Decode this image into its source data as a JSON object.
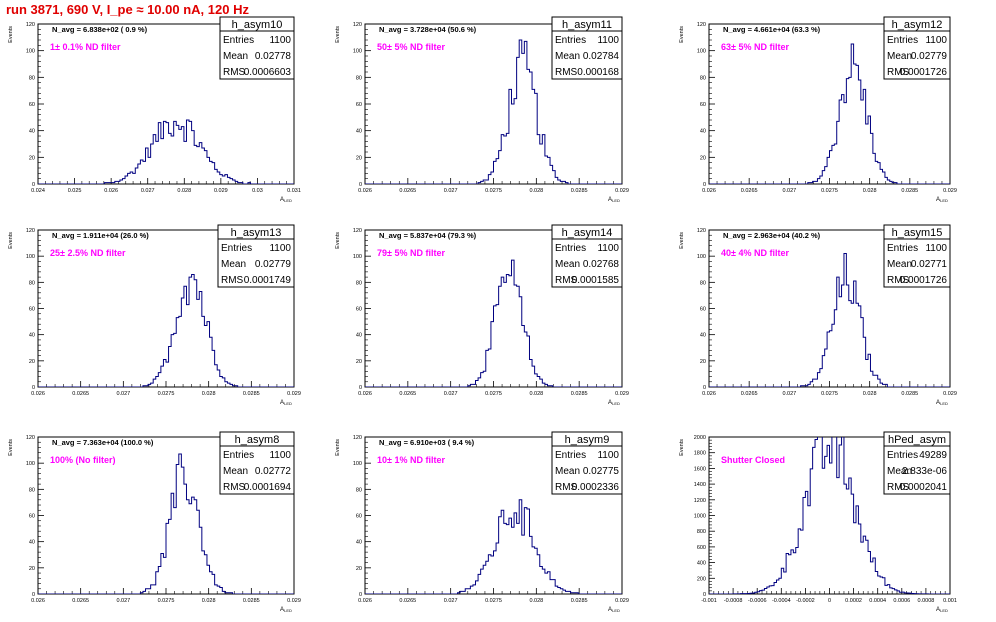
{
  "page": {
    "title": "run 3871,   690 V, I_pe ≈ 10.00 nA, 120 Hz",
    "label_color": "#ff00ff",
    "title_color": "#e00000",
    "hist_color": "#000080",
    "stat_labels": {
      "entries": "Entries",
      "mean": "Mean",
      "rms": "RMS"
    },
    "ylabel": "Events",
    "xlabel": "A",
    "xlabel_sub": "LED"
  },
  "chart_data": [
    {
      "type": "histogram",
      "name": "h_asym10",
      "navg": "N_avg = 6.838e+02 ( 0.9 %)",
      "label": "1± 0.1% ND filter",
      "entries": "1100",
      "mean": "0.02778",
      "rms": "0.0006603",
      "xlim": [
        0.024,
        0.031
      ],
      "ylim": [
        0,
        120
      ],
      "xticks": [
        "0.024",
        "0.025",
        "0.026",
        "0.027",
        "0.028",
        "0.029",
        "0.03",
        "0.031"
      ],
      "yticks": [
        "0",
        "20",
        "40",
        "60",
        "80",
        "100",
        "120"
      ],
      "peak": 0.02778,
      "sigma": 0.0006603,
      "height": 47,
      "nbins": 100
    },
    {
      "type": "histogram",
      "name": "h_asym11",
      "navg": "N_avg = 3.728e+04 (50.6 %)",
      "label": "50± 5% ND filter",
      "entries": "1100",
      "mean": "0.02784",
      "rms": "0.000168",
      "xlim": [
        0.026,
        0.029
      ],
      "ylim": [
        0,
        120
      ],
      "xticks": [
        "0.026",
        "0.0265",
        "0.027",
        "0.0275",
        "0.028",
        "0.0285",
        "0.029"
      ],
      "yticks": [
        "0",
        "20",
        "40",
        "60",
        "80",
        "100",
        "120"
      ],
      "peak": 0.02784,
      "sigma": 0.000168,
      "height": 87,
      "nbins": 100
    },
    {
      "type": "histogram",
      "name": "h_asym12",
      "navg": "N_avg = 4.661e+04 (63.3 %)",
      "label": "63± 5% ND filter",
      "entries": "1100",
      "mean": "0.02779",
      "rms": "0.0001726",
      "xlim": [
        0.026,
        0.029
      ],
      "ylim": [
        0,
        120
      ],
      "xticks": [
        "0.026",
        "0.0265",
        "0.027",
        "0.0275",
        "0.028",
        "0.0285",
        "0.029"
      ],
      "yticks": [
        "0",
        "20",
        "40",
        "60",
        "80",
        "100",
        "120"
      ],
      "peak": 0.02779,
      "sigma": 0.0001726,
      "height": 88,
      "nbins": 100
    },
    {
      "type": "histogram",
      "name": "h_asym13",
      "navg": "N_avg = 1.911e+04 (26.0 %)",
      "label": "25± 2.5% ND filter",
      "entries": "1100",
      "mean": "0.02779",
      "rms": "0.0001749",
      "xlim": [
        0.026,
        0.029
      ],
      "ylim": [
        0,
        120
      ],
      "xticks": [
        "0.026",
        "0.0265",
        "0.027",
        "0.0275",
        "0.028",
        "0.0285",
        "0.029"
      ],
      "yticks": [
        "0",
        "20",
        "40",
        "60",
        "80",
        "100",
        "120"
      ],
      "peak": 0.02779,
      "sigma": 0.0001749,
      "height": 86,
      "nbins": 100
    },
    {
      "type": "histogram",
      "name": "h_asym14",
      "navg": "N_avg = 5.837e+04 (79.3 %)",
      "label": "79± 5% ND filter",
      "entries": "1100",
      "mean": "0.02768",
      "rms": "0.0001585",
      "xlim": [
        0.026,
        0.029
      ],
      "ylim": [
        0,
        120
      ],
      "xticks": [
        "0.026",
        "0.0265",
        "0.027",
        "0.0275",
        "0.028",
        "0.0285",
        "0.029"
      ],
      "yticks": [
        "0",
        "20",
        "40",
        "60",
        "80",
        "100",
        "120"
      ],
      "peak": 0.02768,
      "sigma": 0.0001585,
      "height": 84,
      "nbins": 100
    },
    {
      "type": "histogram",
      "name": "h_asym15",
      "navg": "N_avg = 2.963e+04 (40.2 %)",
      "label": "40± 4% ND filter",
      "entries": "1100",
      "mean": "0.02771",
      "rms": "0.0001726",
      "xlim": [
        0.026,
        0.029
      ],
      "ylim": [
        0,
        120
      ],
      "xticks": [
        "0.026",
        "0.0265",
        "0.027",
        "0.0275",
        "0.028",
        "0.0285",
        "0.029"
      ],
      "yticks": [
        "0",
        "20",
        "40",
        "60",
        "80",
        "100",
        "120"
      ],
      "peak": 0.02771,
      "sigma": 0.0001726,
      "height": 82,
      "nbins": 100
    },
    {
      "type": "histogram",
      "name": "h_asym8",
      "navg": "N_avg = 7.363e+04 (100.0 %)",
      "label": "100% (No filter)",
      "entries": "1100",
      "mean": "0.02772",
      "rms": "0.0001694",
      "xlim": [
        0.026,
        0.029
      ],
      "ylim": [
        0,
        120
      ],
      "xticks": [
        "0.026",
        "0.0265",
        "0.027",
        "0.0275",
        "0.028",
        "0.0285",
        "0.029"
      ],
      "yticks": [
        "0",
        "20",
        "40",
        "60",
        "80",
        "100",
        "120"
      ],
      "peak": 0.02772,
      "sigma": 0.0001694,
      "height": 90,
      "nbins": 100
    },
    {
      "type": "histogram",
      "name": "h_asym9",
      "navg": "N_avg = 6.910e+03 ( 9.4 %)",
      "label": "10± 1% ND filter",
      "entries": "1100",
      "mean": "0.02775",
      "rms": "0.0002336",
      "xlim": [
        0.026,
        0.029
      ],
      "ylim": [
        0,
        120
      ],
      "xticks": [
        "0.026",
        "0.0265",
        "0.027",
        "0.0275",
        "0.028",
        "0.0285",
        "0.029"
      ],
      "yticks": [
        "0",
        "20",
        "40",
        "60",
        "80",
        "100",
        "120"
      ],
      "peak": 0.02775,
      "sigma": 0.0002336,
      "height": 64,
      "nbins": 100
    },
    {
      "type": "histogram",
      "name": "hPed_asym",
      "navg": "",
      "label": "Shutter Closed",
      "entries": "49289",
      "mean": "2.833e-06",
      "rms": "0.0002041",
      "xlim": [
        -0.001,
        0.001
      ],
      "ylim": [
        0,
        2000
      ],
      "xticks": [
        "-0.001",
        "-0.0008",
        "-0.0006",
        "-0.0004",
        "-0.0002",
        "0",
        "0.0002",
        "0.0004",
        "0.0006",
        "0.0008",
        "0.001"
      ],
      "yticks": [
        "0",
        "200",
        "400",
        "600",
        "800",
        "1000",
        "1200",
        "1400",
        "1600",
        "1800",
        "2000"
      ],
      "peak": 2.833e-06,
      "sigma": 0.0002041,
      "height": 1890,
      "nbins": 100
    }
  ]
}
